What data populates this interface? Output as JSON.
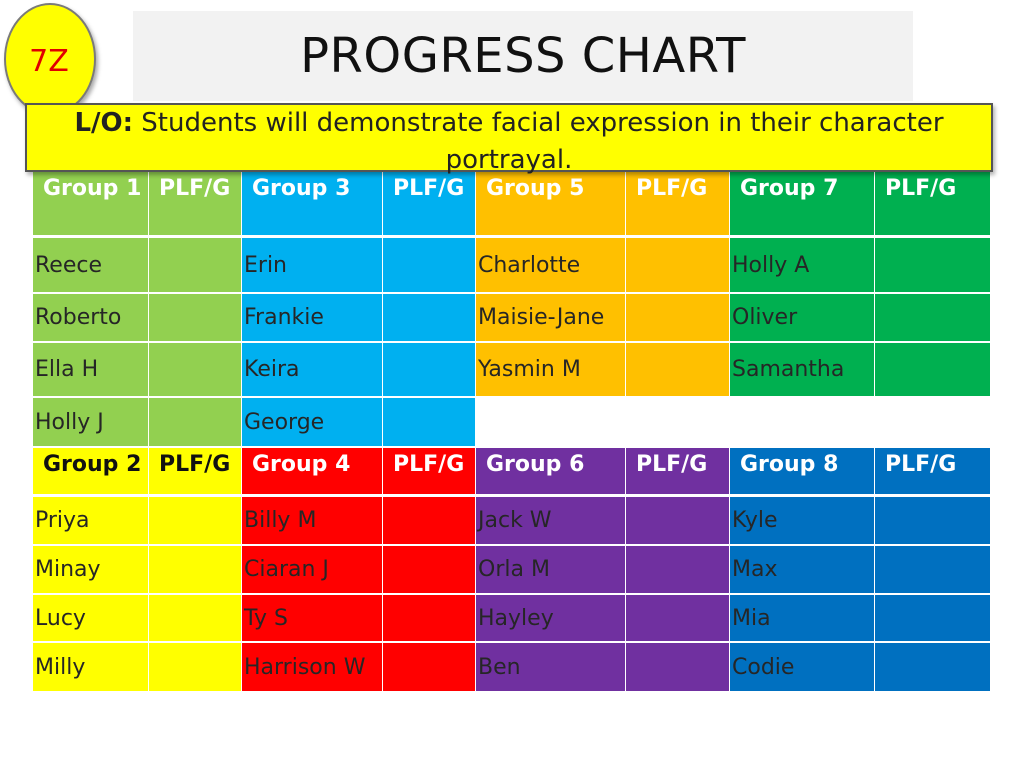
{
  "class_label": "7Z",
  "title": "PROGRESS CHART",
  "objective": {
    "prefix": "L/O:",
    "text": "Students will demonstrate facial expression in their character portrayal."
  },
  "colors": {
    "group1": "#92d050",
    "group2": "#ffff00",
    "group3": "#00b0f0",
    "group4": "#ff0000",
    "group5": "#ffc000",
    "group6": "#7030a0",
    "group7": "#00b050",
    "group8": "#0070c0"
  },
  "groups": [
    {
      "name": "Group 1",
      "plf_label": "PLF/G",
      "students": [
        "Reece",
        "Roberto",
        "Ella H",
        "Holly J"
      ]
    },
    {
      "name": "Group 3",
      "plf_label": "PLF/G",
      "students": [
        "Erin",
        "Frankie",
        "Keira",
        "George"
      ]
    },
    {
      "name": "Group 5",
      "plf_label": "PLF/G",
      "students": [
        "Charlotte",
        "Maisie-Jane",
        "Yasmin M"
      ]
    },
    {
      "name": "Group 7",
      "plf_label": "PLF/G",
      "students": [
        "Holly A",
        "Oliver",
        "Samantha"
      ]
    },
    {
      "name": "Group 2",
      "plf_label": "PLF/G",
      "students": [
        "Priya",
        "Minay",
        "Lucy",
        "Milly"
      ]
    },
    {
      "name": "Group 4",
      "plf_label": "PLF/G",
      "students": [
        "Billy M",
        "Ciaran J",
        "Ty S",
        "Harrison W"
      ]
    },
    {
      "name": "Group 6",
      "plf_label": "PLF/G",
      "students": [
        "Jack W",
        "Orla M",
        "Hayley",
        "Ben"
      ]
    },
    {
      "name": "Group 8",
      "plf_label": "PLF/G",
      "students": [
        "Kyle",
        "Max",
        "Mia",
        "Codie"
      ]
    }
  ]
}
